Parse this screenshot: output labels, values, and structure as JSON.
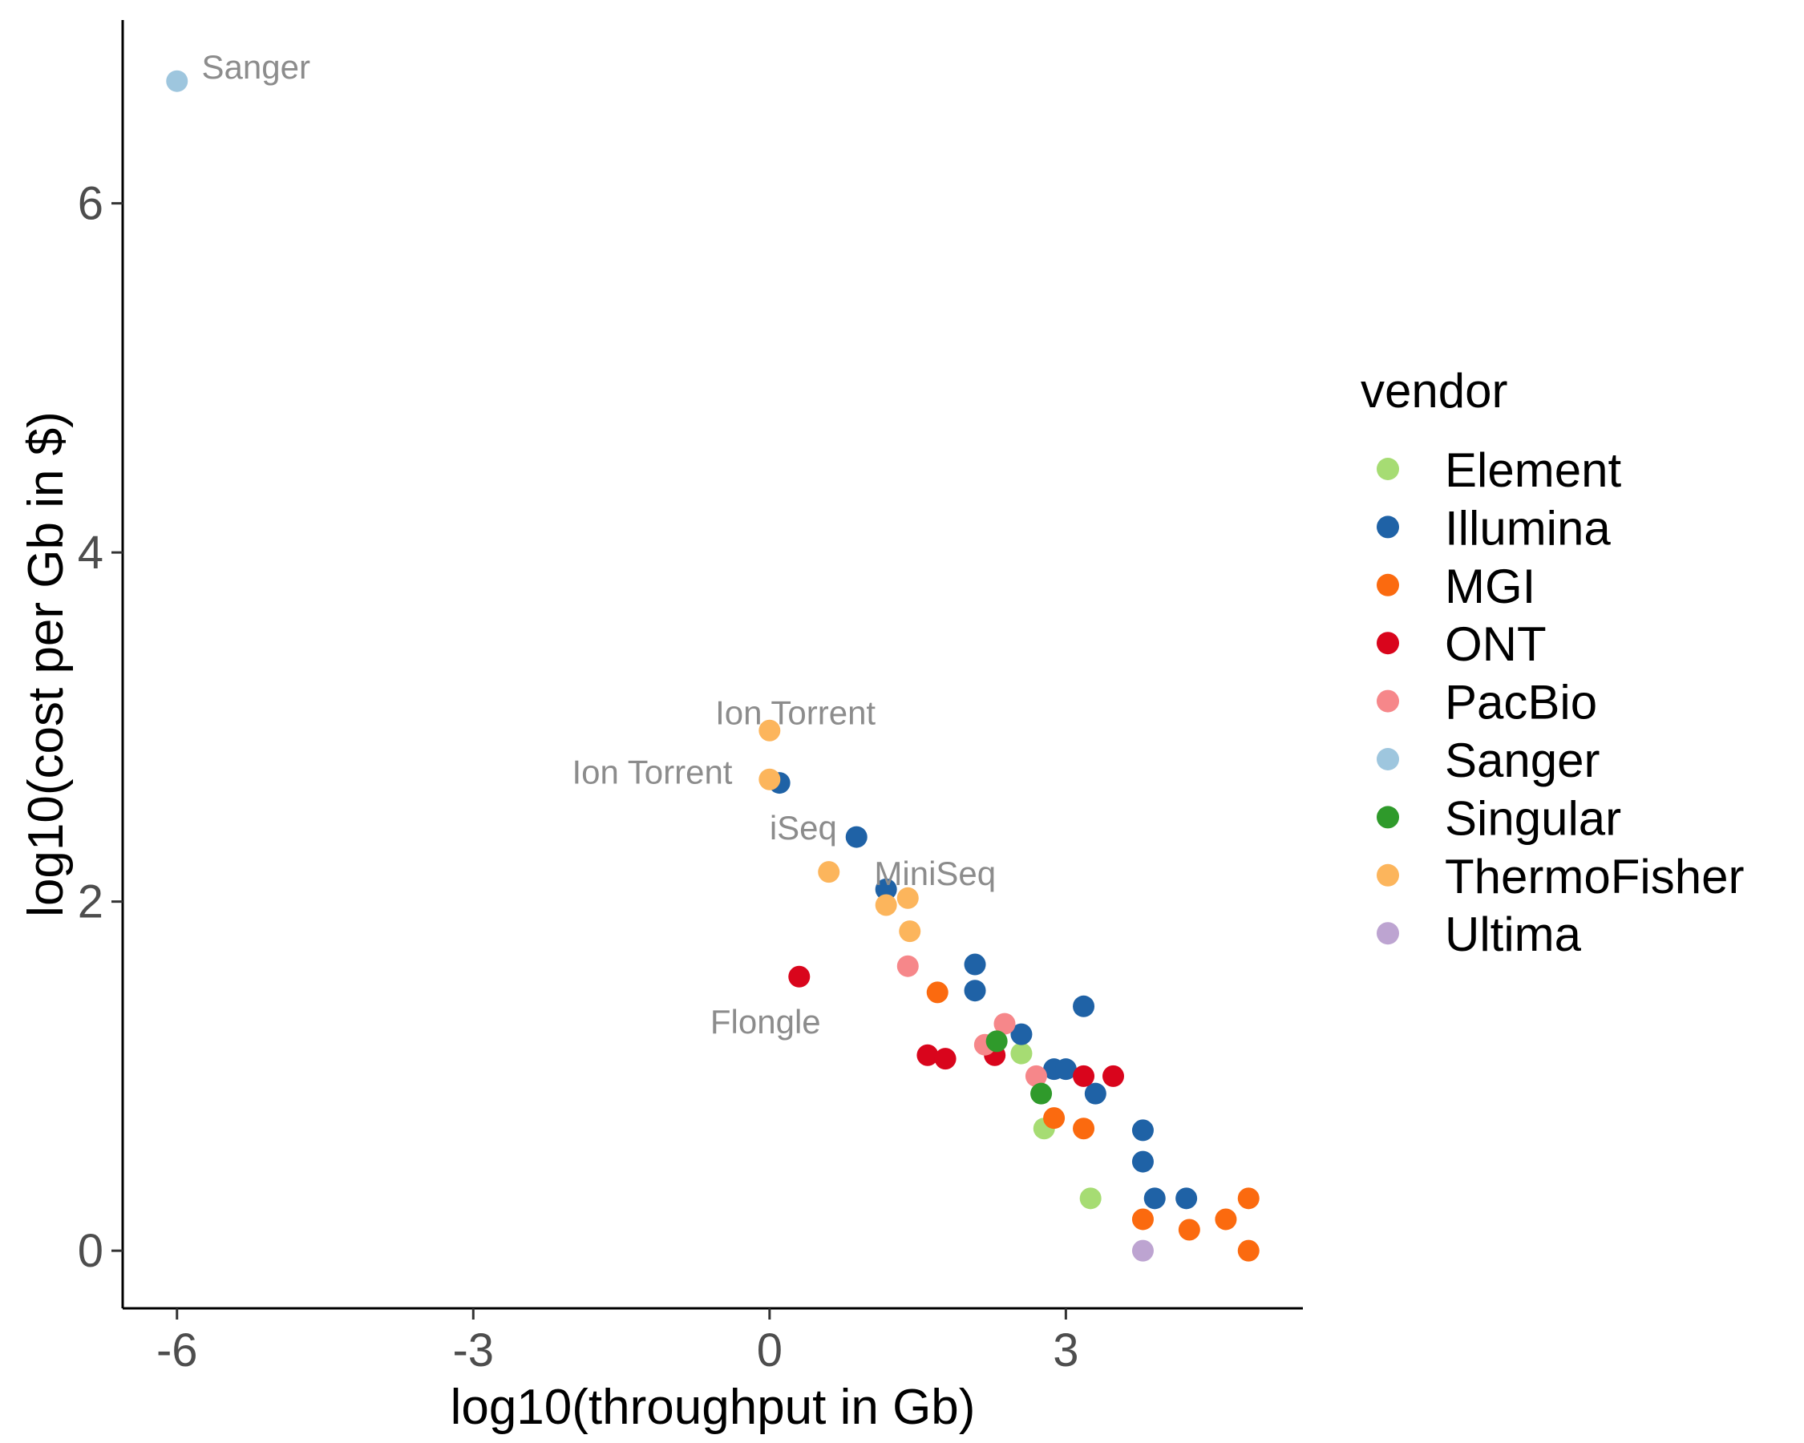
{
  "chart_data": {
    "type": "scatter",
    "xlabel": "log10(throughput in Gb)",
    "ylabel": "log10(cost per Gb in $)",
    "xlim": [
      -6.55,
      5.4
    ],
    "ylim": [
      -0.33,
      7.05
    ],
    "x_ticks": [
      -6,
      -3,
      0,
      3
    ],
    "x_tick_labels": [
      "-6",
      "-3",
      "0",
      "3"
    ],
    "y_ticks": [
      0,
      2,
      4,
      6
    ],
    "y_tick_labels": [
      "0",
      "2",
      "4",
      "6"
    ],
    "grid": false,
    "legend": {
      "title": "vendor",
      "placement": "right",
      "entries": [
        {
          "name": "Element",
          "color": "#a6dc73"
        },
        {
          "name": "Illumina",
          "color": "#1f62a6"
        },
        {
          "name": "MGI",
          "color": "#fb6a0f"
        },
        {
          "name": "ONT",
          "color": "#d9051c"
        },
        {
          "name": "PacBio",
          "color": "#f6878a"
        },
        {
          "name": "Sanger",
          "color": "#9ec6de"
        },
        {
          "name": "Singular",
          "color": "#2f9a2b"
        },
        {
          "name": "ThermoFisher",
          "color": "#fcb55c"
        },
        {
          "name": "Ultima",
          "color": "#bda4d1"
        }
      ]
    },
    "series": [
      {
        "name": "Element",
        "points": [
          [
            2.55,
            1.13
          ],
          [
            2.78,
            0.7
          ],
          [
            3.25,
            0.3
          ]
        ]
      },
      {
        "name": "Illumina",
        "points": [
          [
            0.1,
            2.68
          ],
          [
            0.88,
            2.37
          ],
          [
            1.18,
            2.07
          ],
          [
            2.08,
            1.64
          ],
          [
            2.08,
            1.49
          ],
          [
            2.55,
            1.24
          ],
          [
            2.88,
            1.04
          ],
          [
            3.0,
            1.04
          ],
          [
            3.18,
            1.4
          ],
          [
            3.3,
            0.9
          ],
          [
            3.78,
            0.69
          ],
          [
            3.78,
            0.51
          ],
          [
            3.9,
            0.3
          ],
          [
            4.22,
            0.3
          ]
        ]
      },
      {
        "name": "MGI",
        "points": [
          [
            1.7,
            1.48
          ],
          [
            2.88,
            0.76
          ],
          [
            3.18,
            0.7
          ],
          [
            3.78,
            0.18
          ],
          [
            4.25,
            0.12
          ],
          [
            4.62,
            0.18
          ],
          [
            4.85,
            0.3
          ],
          [
            4.85,
            0.0
          ]
        ]
      },
      {
        "name": "ONT",
        "points": [
          [
            0.3,
            1.57
          ],
          [
            1.6,
            1.12
          ],
          [
            1.78,
            1.1
          ],
          [
            2.28,
            1.12
          ],
          [
            3.18,
            1.0
          ],
          [
            3.48,
            1.0
          ]
        ]
      },
      {
        "name": "PacBio",
        "points": [
          [
            1.4,
            1.63
          ],
          [
            2.18,
            1.18
          ],
          [
            2.38,
            1.3
          ],
          [
            2.7,
            1.0
          ]
        ]
      },
      {
        "name": "Sanger",
        "points": [
          [
            -6.0,
            6.7
          ]
        ]
      },
      {
        "name": "Singular",
        "points": [
          [
            2.3,
            1.2
          ],
          [
            2.75,
            0.9
          ]
        ]
      },
      {
        "name": "ThermoFisher",
        "points": [
          [
            0.0,
            2.98
          ],
          [
            0.0,
            2.7
          ],
          [
            0.6,
            2.17
          ],
          [
            1.18,
            1.98
          ],
          [
            1.4,
            2.02
          ],
          [
            1.42,
            1.83
          ]
        ]
      },
      {
        "name": "Ultima",
        "points": [
          [
            3.78,
            0.0
          ]
        ]
      }
    ],
    "annotations": [
      {
        "text": "Sanger",
        "x": -5.75,
        "y": 6.78
      },
      {
        "text": "Ion Torrent",
        "x": -0.55,
        "y": 3.08
      },
      {
        "text": "Ion Torrent",
        "x": -2.0,
        "y": 2.74
      },
      {
        "text": "iSeq",
        "x": 0.0,
        "y": 2.42
      },
      {
        "text": "MiniSeq",
        "x": 1.06,
        "y": 2.16
      },
      {
        "text": "Flongle",
        "x": -0.6,
        "y": 1.31
      }
    ]
  }
}
